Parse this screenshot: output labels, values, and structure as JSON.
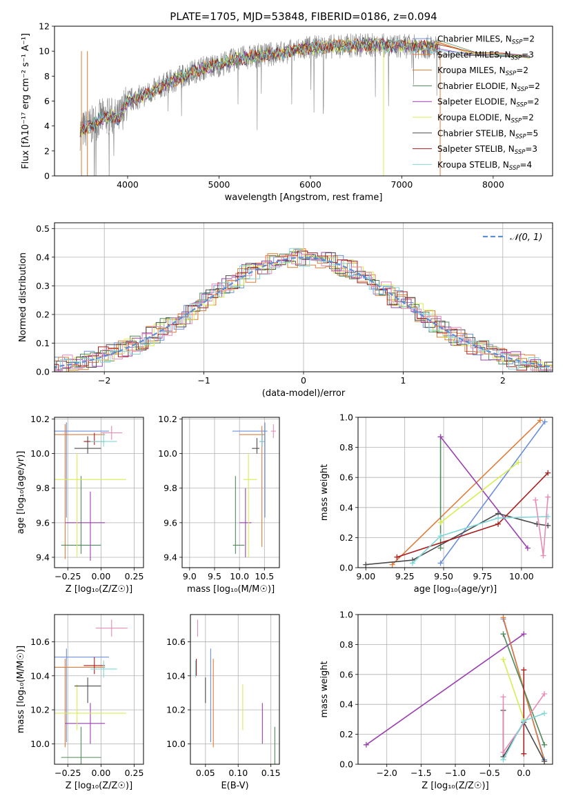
{
  "title": "PLATE=1705, MJD=53848, FIBERID=0186, z=0.094",
  "colors": {
    "Chabrier MILES": "#6b8fdc",
    "Salpeter MILES": "#e07b39",
    "Kroupa MILES": "#d67e2c",
    "Chabrier ELODIE": "#4f8a5a",
    "Salpeter ELODIE": "#9a3fb0",
    "Kroupa ELODIE": "#d7ee4f",
    "Chabrier STELIB": "#4a4a4a",
    "Salpeter STELIB": "#a81c1c",
    "Kroupa STELIB": "#7fd6d8",
    "pink": "#e88ab4",
    "data": "#808080",
    "normal": "#5b8fd6"
  },
  "chart_data": [
    {
      "id": "spectrum",
      "type": "line",
      "title": "PLATE=1705, MJD=53848, FIBERID=0186, z=0.094",
      "xlabel": "wavelength [Angstrom, rest frame]",
      "ylabel": "Flux [f_λ 10^-17 erg cm^-2 s^-1 A^-1]",
      "xlim": [
        3200,
        8650
      ],
      "ylim": [
        0,
        12
      ],
      "xticks": [
        4000,
        5000,
        6000,
        7000,
        8000
      ],
      "yticks": [
        0,
        2,
        4,
        6,
        8,
        10,
        12
      ],
      "continuum": {
        "x": [
          3480,
          3600,
          3700,
          3800,
          3900,
          4000,
          4200,
          4400,
          4600,
          4800,
          5000,
          5200,
          5500,
          5800,
          6000,
          6300,
          6600,
          7000,
          7400
        ],
        "y": [
          3.6,
          4.0,
          4.6,
          4.8,
          4.6,
          6.0,
          6.5,
          7.3,
          8.0,
          8.6,
          8.9,
          9.4,
          9.7,
          10.0,
          10.3,
          10.4,
          10.5,
          10.4,
          10.3
        ]
      },
      "models_end": {
        "x": [
          7800,
          8100,
          8400
        ],
        "y": [
          9.8,
          9.7,
          9.5
        ]
      },
      "legend": [
        "Chabrier MILES, N_SSP=2",
        "Salpeter MILES, N_SSP=3",
        "Kroupa MILES, N_SSP=2",
        "Chabrier ELODIE, N_SSP=2",
        "Salpeter ELODIE, N_SSP=2",
        "Kroupa ELODIE, N_SSP=2",
        "Chabrier STELIB, N_SSP=5",
        "Salpeter STELIB, N_SSP=3",
        "Kroupa STELIB, N_SSP=4"
      ],
      "legend_keys": [
        "Chabrier MILES",
        "Salpeter MILES",
        "Kroupa MILES",
        "Chabrier ELODIE",
        "Salpeter ELODIE",
        "Kroupa ELODIE",
        "Chabrier STELIB",
        "Salpeter STELIB",
        "Kroupa STELIB"
      ],
      "legend_placement": "right"
    },
    {
      "id": "residuals",
      "type": "line",
      "xlabel": "(data-model)/error",
      "ylabel": "Normed distribution",
      "xlim": [
        -2.5,
        2.5
      ],
      "ylim": [
        0,
        0.52
      ],
      "xticks": [
        -2,
        -1,
        0,
        1,
        2
      ],
      "yticks": [
        0.0,
        0.1,
        0.2,
        0.3,
        0.4,
        0.5
      ],
      "grid": true,
      "legend": [
        "N(0,1)"
      ],
      "legend_placement": "top-right"
    },
    {
      "id": "age-vs-Z",
      "type": "scatter",
      "xlabel": "Z [log10(Z/Z_sun)]",
      "ylabel": "age [log10(age/yr)]",
      "xlim": [
        -0.35,
        0.32
      ],
      "ylim": [
        9.34,
        10.21
      ],
      "xticks": [
        -0.25,
        0.0,
        0.25
      ],
      "yticks": [
        9.4,
        9.6,
        9.8,
        10.0,
        10.2
      ],
      "points": [
        {
          "model": "Chabrier MILES",
          "x": -0.26,
          "y": 10.13,
          "xerr": [
            0.35,
            0.32
          ],
          "yerr": [
            0.5,
            0.05
          ]
        },
        {
          "model": "Salpeter MILES",
          "x": -0.27,
          "y": 10.11,
          "xerr": [
            0.28,
            0.3
          ],
          "yerr": [
            0.72,
            0.06
          ]
        },
        {
          "model": "Chabrier ELODIE",
          "x": -0.15,
          "y": 9.47,
          "xerr": [
            0.15,
            0.15
          ],
          "yerr": [
            0.05,
            0.4
          ]
        },
        {
          "model": "Salpeter ELODIE",
          "x": -0.08,
          "y": 9.6,
          "xerr": [
            0.19,
            0.11
          ],
          "yerr": [
            0.22,
            0.18
          ]
        },
        {
          "model": "Kroupa ELODIE",
          "x": -0.18,
          "y": 9.85,
          "xerr": [
            0.18,
            0.37
          ],
          "yerr": [
            0.45,
            0.15
          ]
        },
        {
          "model": "Chabrier STELIB",
          "x": -0.1,
          "y": 10.03,
          "xerr": [
            0.1,
            0.1
          ],
          "yerr": [
            0.03,
            0.07
          ]
        },
        {
          "model": "Salpeter STELIB",
          "x": -0.05,
          "y": 10.07,
          "xerr": [
            0.08,
            0.08
          ],
          "yerr": [
            0.02,
            0.05
          ]
        },
        {
          "model": "Kroupa STELIB",
          "x": 0.02,
          "y": 10.07,
          "xerr": [
            0.1,
            0.1
          ],
          "yerr": [
            0.03,
            0.05
          ]
        },
        {
          "model": "pink",
          "x": 0.08,
          "y": 10.12,
          "xerr": [
            0.08,
            0.08
          ],
          "yerr": [
            0.04,
            0.04
          ]
        }
      ]
    },
    {
      "id": "age-vs-mass",
      "type": "scatter",
      "xlabel": "mass [log10(M/M_sun)]",
      "ylabel": "",
      "xlim": [
        8.85,
        10.8
      ],
      "ylim": [
        9.34,
        10.21
      ],
      "xticks": [
        9.0,
        9.5,
        10.0,
        10.5
      ],
      "yticks": [
        9.4,
        9.6,
        9.8,
        10.0,
        10.2
      ],
      "points": [
        {
          "model": "Chabrier MILES",
          "x": 10.51,
          "y": 10.13,
          "xerr": [
            0.65,
            0.05
          ],
          "yerr": [
            0.5,
            0.05
          ]
        },
        {
          "model": "Salpeter MILES",
          "x": 10.45,
          "y": 10.11,
          "xerr": [
            0.45,
            0.05
          ],
          "yerr": [
            0.65,
            0.05
          ]
        },
        {
          "model": "Chabrier ELODIE",
          "x": 9.92,
          "y": 9.47,
          "xerr": [
            0.05,
            0.18
          ],
          "yerr": [
            0.05,
            0.4
          ]
        },
        {
          "model": "Salpeter ELODIE",
          "x": 10.12,
          "y": 9.6,
          "xerr": [
            0.12,
            0.12
          ],
          "yerr": [
            0.2,
            0.2
          ]
        },
        {
          "model": "Kroupa ELODIE",
          "x": 10.18,
          "y": 9.85,
          "xerr": [
            0.1,
            0.17
          ],
          "yerr": [
            0.45,
            0.15
          ]
        },
        {
          "model": "Chabrier STELIB",
          "x": 10.35,
          "y": 10.03,
          "xerr": [
            0.1,
            0.05
          ],
          "yerr": [
            0.03,
            0.06
          ]
        },
        {
          "model": "Salpeter STELIB",
          "x": 10.45,
          "y": 10.07,
          "xerr": [
            0.05,
            0.05
          ],
          "yerr": [
            0.03,
            0.05
          ]
        },
        {
          "model": "Kroupa STELIB",
          "x": 10.45,
          "y": 10.07,
          "xerr": [
            0.05,
            0.05
          ],
          "yerr": [
            0.03,
            0.05
          ]
        },
        {
          "model": "pink",
          "x": 10.68,
          "y": 10.13,
          "xerr": [
            0.05,
            0.05
          ],
          "yerr": [
            0.04,
            0.04
          ]
        }
      ]
    },
    {
      "id": "weight-vs-age",
      "type": "line",
      "xlabel": "age [log10(age/yr)]",
      "ylabel": "mass weight",
      "xlim": [
        8.95,
        10.2
      ],
      "ylim": [
        0,
        1
      ],
      "xticks": [
        9.0,
        9.25,
        9.5,
        9.75,
        10.0
      ],
      "yticks": [
        0.0,
        0.2,
        0.4,
        0.6,
        0.8,
        1.0
      ],
      "series": [
        {
          "model": "Chabrier MILES",
          "x": [
            9.48,
            10.15
          ],
          "y": [
            0.03,
            0.97
          ]
        },
        {
          "model": "Salpeter MILES",
          "x": [
            9.17,
            10.12
          ],
          "y": [
            0.02,
            0.98
          ]
        },
        {
          "model": "Chabrier ELODIE",
          "x": [
            9.48,
            9.48
          ],
          "y": [
            0.13,
            0.87
          ]
        },
        {
          "model": "Salpeter ELODIE",
          "x": [
            9.48,
            10.04
          ],
          "y": [
            0.87,
            0.13
          ]
        },
        {
          "model": "Kroupa ELODIE",
          "x": [
            9.48,
            9.98
          ],
          "y": [
            0.3,
            0.7
          ]
        },
        {
          "model": "Chabrier STELIB",
          "x": [
            9.0,
            9.3,
            9.85,
            10.1,
            10.17
          ],
          "y": [
            0.02,
            0.05,
            0.36,
            0.29,
            0.28
          ]
        },
        {
          "model": "Salpeter STELIB",
          "x": [
            9.2,
            9.85,
            10.17
          ],
          "y": [
            0.07,
            0.29,
            0.63
          ]
        },
        {
          "model": "Kroupa STELIB",
          "x": [
            9.3,
            9.48,
            9.85,
            10.17
          ],
          "y": [
            0.03,
            0.21,
            0.33,
            0.34
          ]
        },
        {
          "model": "pink",
          "x": [
            10.09,
            10.14,
            10.17
          ],
          "y": [
            0.45,
            0.08,
            0.47
          ]
        }
      ]
    },
    {
      "id": "mass-vs-Z",
      "type": "scatter",
      "xlabel": "Z [log10(Z/Z_sun)]",
      "ylabel": "mass [log10(M/M_sun)]",
      "xlim": [
        -0.35,
        0.32
      ],
      "ylim": [
        9.88,
        10.76
      ],
      "xticks": [
        -0.25,
        0.0,
        0.25
      ],
      "yticks": [
        10.0,
        10.2,
        10.4,
        10.6
      ],
      "points": [
        {
          "model": "Chabrier MILES",
          "x": -0.26,
          "y": 10.51,
          "xerr": [
            0.35,
            0.32
          ],
          "yerr": [
            0.5,
            0.05
          ]
        },
        {
          "model": "Salpeter MILES",
          "x": -0.27,
          "y": 10.45,
          "xerr": [
            0.28,
            0.3
          ],
          "yerr": [
            0.47,
            0.05
          ]
        },
        {
          "model": "Chabrier ELODIE",
          "x": -0.15,
          "y": 9.92,
          "xerr": [
            0.15,
            0.15
          ],
          "yerr": [
            0.05,
            0.18
          ]
        },
        {
          "model": "Salpeter ELODIE",
          "x": -0.08,
          "y": 10.12,
          "xerr": [
            0.19,
            0.11
          ],
          "yerr": [
            0.12,
            0.12
          ]
        },
        {
          "model": "Kroupa ELODIE",
          "x": -0.18,
          "y": 10.18,
          "xerr": [
            0.18,
            0.37
          ],
          "yerr": [
            0.1,
            0.17
          ]
        },
        {
          "model": "Chabrier STELIB",
          "x": -0.1,
          "y": 10.34,
          "xerr": [
            0.1,
            0.1
          ],
          "yerr": [
            0.1,
            0.05
          ]
        },
        {
          "model": "Salpeter STELIB",
          "x": -0.05,
          "y": 10.46,
          "xerr": [
            0.08,
            0.08
          ],
          "yerr": [
            0.05,
            0.05
          ]
        },
        {
          "model": "Kroupa STELIB",
          "x": 0.02,
          "y": 10.44,
          "xerr": [
            0.1,
            0.1
          ],
          "yerr": [
            0.05,
            0.05
          ]
        },
        {
          "model": "pink",
          "x": 0.08,
          "y": 10.68,
          "xerr": [
            0.12,
            0.12
          ],
          "yerr": [
            0.05,
            0.05
          ]
        }
      ]
    },
    {
      "id": "mass-vs-EBV",
      "type": "scatter",
      "xlabel": "E(B-V)",
      "ylabel": "",
      "xlim": [
        0.027,
        0.163
      ],
      "ylim": [
        9.88,
        10.76
      ],
      "xticks": [
        0.05,
        0.1,
        0.15
      ],
      "yticks": [
        10.0,
        10.2,
        10.4,
        10.6
      ],
      "points": [
        {
          "model": "Kroupa STELIB",
          "x": 0.035,
          "y": 10.44,
          "yerr": [
            0.05,
            0.05
          ]
        },
        {
          "model": "Salpeter STELIB",
          "x": 0.036,
          "y": 10.45,
          "yerr": [
            0.05,
            0.05
          ]
        },
        {
          "model": "pink",
          "x": 0.038,
          "y": 10.68,
          "yerr": [
            0.05,
            0.05
          ]
        },
        {
          "model": "Chabrier STELIB",
          "x": 0.05,
          "y": 10.34,
          "yerr": [
            0.1,
            0.05
          ]
        },
        {
          "model": "Chabrier MILES",
          "x": 0.058,
          "y": 10.51,
          "yerr": [
            0.5,
            0.05
          ]
        },
        {
          "model": "Salpeter MILES",
          "x": 0.062,
          "y": 10.45,
          "yerr": [
            0.47,
            0.05
          ]
        },
        {
          "model": "Kroupa ELODIE",
          "x": 0.107,
          "y": 10.18,
          "yerr": [
            0.1,
            0.17
          ]
        },
        {
          "model": "Salpeter ELODIE",
          "x": 0.137,
          "y": 10.12,
          "yerr": [
            0.12,
            0.12
          ]
        },
        {
          "model": "Chabrier ELODIE",
          "x": 0.156,
          "y": 9.92,
          "yerr": [
            0.05,
            0.18
          ]
        }
      ]
    },
    {
      "id": "weight-vs-Z",
      "type": "line",
      "xlabel": "Z [log10(Z/Z_sun)]",
      "ylabel": "mass weight",
      "xlim": [
        -2.42,
        0.42
      ],
      "ylim": [
        0,
        1
      ],
      "xticks": [
        -2.0,
        -1.5,
        -1.0,
        -0.5,
        0.0
      ],
      "yticks": [
        0.0,
        0.2,
        0.4,
        0.6,
        0.8,
        1.0
      ],
      "series": [
        {
          "model": "Salpeter ELODIE",
          "x": [
            -2.3,
            0.0
          ],
          "y": [
            0.13,
            0.87
          ]
        },
        {
          "model": "Chabrier MILES",
          "x": [
            -0.3,
            0.3
          ],
          "y": [
            0.97,
            0.03
          ]
        },
        {
          "model": "Salpeter MILES",
          "x": [
            -0.3,
            0.3
          ],
          "y": [
            0.98,
            0.02
          ]
        },
        {
          "model": "Chabrier ELODIE",
          "x": [
            -0.3,
            0.3
          ],
          "y": [
            0.87,
            0.13
          ]
        },
        {
          "model": "Kroupa ELODIE",
          "x": [
            -0.3,
            0.0
          ],
          "y": [
            0.7,
            0.3
          ]
        },
        {
          "model": "Salpeter STELIB",
          "x": [
            0.0,
            0.0
          ],
          "y": [
            0.07,
            0.63
          ]
        },
        {
          "model": "Chabrier STELIB",
          "x": [
            -0.3,
            -0.3,
            0.0,
            0.3
          ],
          "y": [
            0.36,
            0.05,
            0.28,
            0.02
          ]
        },
        {
          "model": "pink",
          "x": [
            -0.3,
            -0.3,
            0.3
          ],
          "y": [
            0.45,
            0.08,
            0.47
          ]
        },
        {
          "model": "Kroupa STELIB",
          "x": [
            -0.3,
            0.0,
            0.3
          ],
          "y": [
            0.03,
            0.29,
            0.34
          ]
        }
      ]
    }
  ]
}
